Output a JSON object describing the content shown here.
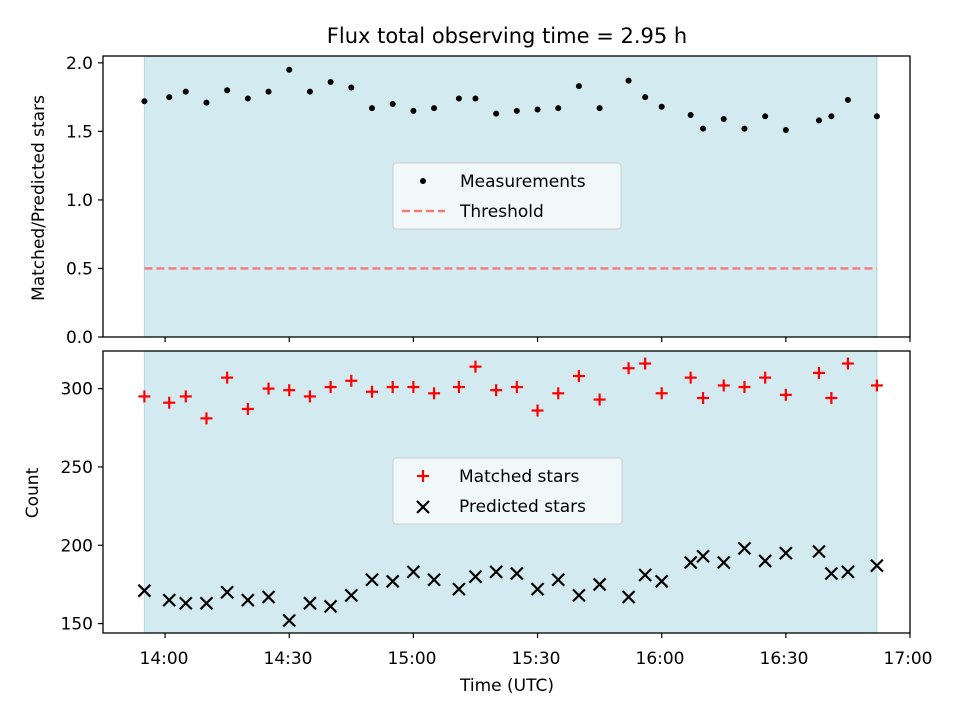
{
  "figure": {
    "title": "Flux total observing time = 2.95 h",
    "xlabel": "Time (UTC)",
    "xticks": [
      "14:00",
      "14:30",
      "15:00",
      "15:30",
      "16:00",
      "16:30",
      "17:00"
    ]
  },
  "colors": {
    "observing_band": "#d3eaf0",
    "band_edge": "#add8e6",
    "threshold": "#f47a7a",
    "measurements": "#000000",
    "matched": "#ff0000",
    "predicted": "#000000"
  },
  "chart_data": [
    {
      "type": "scatter",
      "panel": "top",
      "ylabel": "Matched/Predicted stars",
      "ylim": [
        0,
        2.05
      ],
      "yticks": [
        "0.0",
        "0.5",
        "1.0",
        "1.5",
        "2.0"
      ],
      "xlim": [
        "13:45",
        "17:00"
      ],
      "observing_band": [
        "13:55",
        "16:52"
      ],
      "legend_position": "center",
      "series": [
        {
          "name": "Measurements",
          "marker": "dot",
          "x": [
            "13:55",
            "14:01",
            "14:05",
            "14:10",
            "14:15",
            "14:20",
            "14:25",
            "14:30",
            "14:35",
            "14:40",
            "14:45",
            "14:50",
            "14:55",
            "15:00",
            "15:05",
            "15:11",
            "15:15",
            "15:20",
            "15:25",
            "15:30",
            "15:35",
            "15:40",
            "15:45",
            "15:52",
            "15:56",
            "16:00",
            "16:07",
            "16:10",
            "16:15",
            "16:20",
            "16:25",
            "16:30",
            "16:38",
            "16:41",
            "16:45",
            "16:52"
          ],
          "values": [
            1.72,
            1.75,
            1.79,
            1.71,
            1.8,
            1.74,
            1.79,
            1.95,
            1.79,
            1.86,
            1.82,
            1.67,
            1.7,
            1.65,
            1.67,
            1.74,
            1.74,
            1.63,
            1.65,
            1.66,
            1.67,
            1.83,
            1.67,
            1.87,
            1.75,
            1.68,
            1.62,
            1.52,
            1.59,
            1.52,
            1.61,
            1.51,
            1.58,
            1.61,
            1.73,
            1.61
          ]
        },
        {
          "name": "Threshold",
          "style": "dashed",
          "x": [
            "13:55",
            "16:52"
          ],
          "values": [
            0.5,
            0.5
          ]
        }
      ]
    },
    {
      "type": "scatter",
      "panel": "bottom",
      "ylabel": "Count",
      "ylim": [
        144,
        324
      ],
      "yticks": [
        "150",
        "200",
        "250",
        "300"
      ],
      "xlim": [
        "13:45",
        "17:00"
      ],
      "observing_band": [
        "13:55",
        "16:52"
      ],
      "legend_position": "center",
      "series": [
        {
          "name": "Matched stars",
          "marker": "plus",
          "x": [
            "13:55",
            "14:01",
            "14:05",
            "14:10",
            "14:15",
            "14:20",
            "14:25",
            "14:30",
            "14:35",
            "14:40",
            "14:45",
            "14:50",
            "14:55",
            "15:00",
            "15:05",
            "15:11",
            "15:15",
            "15:20",
            "15:25",
            "15:30",
            "15:35",
            "15:40",
            "15:45",
            "15:52",
            "15:56",
            "16:00",
            "16:07",
            "16:10",
            "16:15",
            "16:20",
            "16:25",
            "16:30",
            "16:38",
            "16:41",
            "16:45",
            "16:52"
          ],
          "values": [
            295,
            291,
            295,
            281,
            307,
            287,
            300,
            299,
            295,
            301,
            305,
            298,
            301,
            301,
            297,
            301,
            314,
            299,
            301,
            286,
            297,
            308,
            293,
            313,
            316,
            297,
            307,
            294,
            302,
            301,
            307,
            296,
            310,
            294,
            316,
            302
          ]
        },
        {
          "name": "Predicted stars",
          "marker": "x",
          "x": [
            "13:55",
            "14:01",
            "14:05",
            "14:10",
            "14:15",
            "14:20",
            "14:25",
            "14:30",
            "14:35",
            "14:40",
            "14:45",
            "14:50",
            "14:55",
            "15:00",
            "15:05",
            "15:11",
            "15:15",
            "15:20",
            "15:25",
            "15:30",
            "15:35",
            "15:40",
            "15:45",
            "15:52",
            "15:56",
            "16:00",
            "16:07",
            "16:10",
            "16:15",
            "16:20",
            "16:25",
            "16:30",
            "16:38",
            "16:41",
            "16:45",
            "16:52"
          ],
          "values": [
            171,
            165,
            163,
            163,
            170,
            165,
            167,
            152,
            163,
            161,
            168,
            178,
            177,
            183,
            178,
            172,
            180,
            183,
            182,
            172,
            178,
            168,
            175,
            167,
            181,
            177,
            189,
            193,
            189,
            198,
            190,
            195,
            196,
            182,
            183,
            187
          ]
        }
      ]
    }
  ]
}
